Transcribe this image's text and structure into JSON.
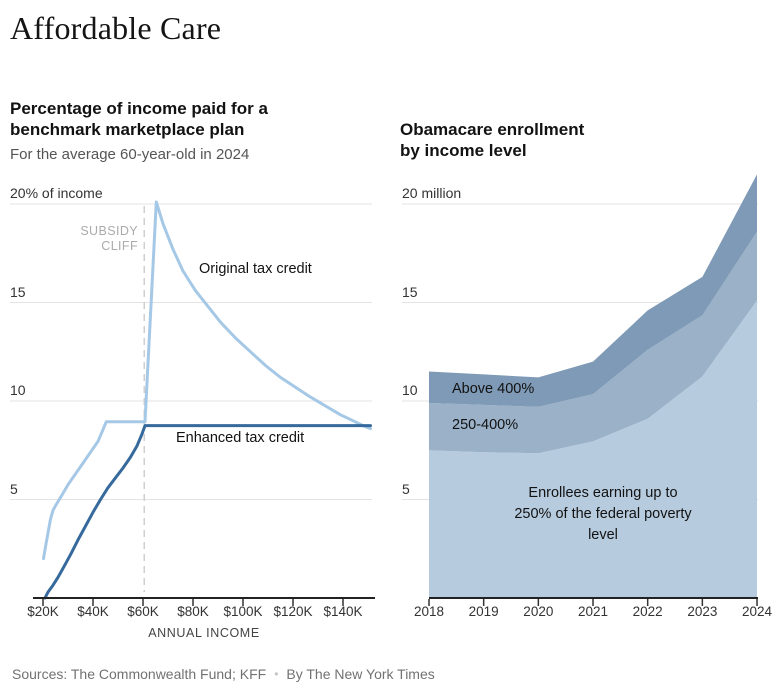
{
  "page": {
    "title": "Affordable Care",
    "footer": {
      "sources": "Sources: The Commonwealth Fund; KFF",
      "bullet": "•",
      "byline": "By The New York Times"
    }
  },
  "left_chart": {
    "heading_lines": [
      "Percentage of income paid for a",
      "benchmark marketplace plan"
    ],
    "subtitle": "For the average 60-year-old in 2024",
    "xlabel": "ANNUAL INCOME",
    "cliff_lines": [
      "SUBSIDY",
      "CLIFF"
    ],
    "label_original": "Original tax credit",
    "label_enhanced": "Enhanced tax credit"
  },
  "right_chart": {
    "heading_lines": [
      "Obamacare enrollment",
      "by income level"
    ],
    "label_above": "Above 400%",
    "label_mid": "250-400%",
    "label_low": "Enrollees earning up to 250% of the federal poverty level"
  },
  "chart_data": [
    {
      "type": "line",
      "title": "Percentage of income paid for a benchmark marketplace plan",
      "subtitle": "For the average 60-year-old in 2024",
      "xlabel": "ANNUAL INCOME",
      "ylabel": "% of income",
      "x_unit": "annual income, thousands of dollars",
      "xlim": [
        18,
        152
      ],
      "ylim": [
        0,
        20.5
      ],
      "grid": true,
      "xticks": [
        20,
        40,
        60,
        80,
        100,
        120,
        140
      ],
      "xtick_labels": [
        "$20K",
        "$40K",
        "$60K",
        "$80K",
        "$100K",
        "$120K",
        "$140K"
      ],
      "yticks": [
        5,
        10,
        15,
        20
      ],
      "ytick_labels": [
        "5",
        "10",
        "15",
        "20% of income"
      ],
      "annotations": {
        "subsidy_cliff_x": 60.5,
        "subsidy_cliff_label": "SUBSIDY CLIFF"
      },
      "series": [
        {
          "name": "Original tax credit",
          "color": "#a5c8e6",
          "points": [
            [
              20.2,
              2.0
            ],
            [
              21,
              2.6
            ],
            [
              22,
              3.3
            ],
            [
              23,
              4.0
            ],
            [
              24,
              4.45
            ],
            [
              25.3,
              4.75
            ],
            [
              27,
              5.1
            ],
            [
              30,
              5.75
            ],
            [
              33,
              6.3
            ],
            [
              36,
              6.85
            ],
            [
              39,
              7.4
            ],
            [
              42,
              7.95
            ],
            [
              44,
              8.55
            ],
            [
              45.3,
              8.95
            ],
            [
              60.8,
              8.95
            ],
            [
              65.3,
              20.1
            ],
            [
              68,
              19.0
            ],
            [
              72,
              17.7
            ],
            [
              76,
              16.6
            ],
            [
              81,
              15.6
            ],
            [
              86,
              14.8
            ],
            [
              91,
              14.0
            ],
            [
              97,
              13.2
            ],
            [
              103,
              12.5
            ],
            [
              109,
              11.8
            ],
            [
              115,
              11.2
            ],
            [
              121,
              10.7
            ],
            [
              127,
              10.2
            ],
            [
              133,
              9.75
            ],
            [
              139,
              9.3
            ],
            [
              144,
              9.0
            ],
            [
              148,
              8.75
            ],
            [
              151,
              8.6
            ]
          ]
        },
        {
          "name": "Enhanced tax credit",
          "color": "#36699c",
          "points": [
            [
              20.8,
              0
            ],
            [
              22,
              0.3
            ],
            [
              24,
              0.65
            ],
            [
              26,
              1.05
            ],
            [
              28,
              1.5
            ],
            [
              31,
              2.2
            ],
            [
              34,
              2.95
            ],
            [
              37,
              3.65
            ],
            [
              40,
              4.35
            ],
            [
              43,
              5.0
            ],
            [
              46,
              5.6
            ],
            [
              49,
              6.1
            ],
            [
              52,
              6.6
            ],
            [
              55,
              7.15
            ],
            [
              57.5,
              7.7
            ],
            [
              59.5,
              8.3
            ],
            [
              60.8,
              8.75
            ],
            [
              151,
              8.75
            ]
          ]
        }
      ]
    },
    {
      "type": "area",
      "title": "Obamacare enrollment by income level",
      "ylabel": "million enrollees",
      "stacked": true,
      "x": [
        2018,
        2019,
        2020,
        2021,
        2022,
        2023,
        2024
      ],
      "xtick_labels": [
        "2018",
        "2019",
        "2020",
        "2021",
        "2022",
        "2023",
        "2024"
      ],
      "yticks": [
        5,
        10,
        15,
        20
      ],
      "ytick_labels": [
        "5",
        "10",
        "15",
        "20 million"
      ],
      "ylim": [
        0,
        21.6
      ],
      "grid": true,
      "series": [
        {
          "name": "Enrollees earning up to 250% of the federal poverty level",
          "color": "#b7cbde",
          "values": [
            7.5,
            7.4,
            7.35,
            7.95,
            9.1,
            11.25,
            15.1
          ]
        },
        {
          "name": "250-400%",
          "color": "#9ab1c8",
          "values": [
            2.4,
            2.4,
            2.35,
            2.4,
            3.5,
            3.1,
            3.5
          ]
        },
        {
          "name": "Above 400%",
          "color": "#7e9ab6",
          "values": [
            1.6,
            1.55,
            1.5,
            1.65,
            2.0,
            1.95,
            2.9
          ]
        }
      ],
      "totals": [
        11.5,
        11.35,
        11.2,
        12.0,
        14.6,
        16.3,
        21.5
      ]
    }
  ]
}
